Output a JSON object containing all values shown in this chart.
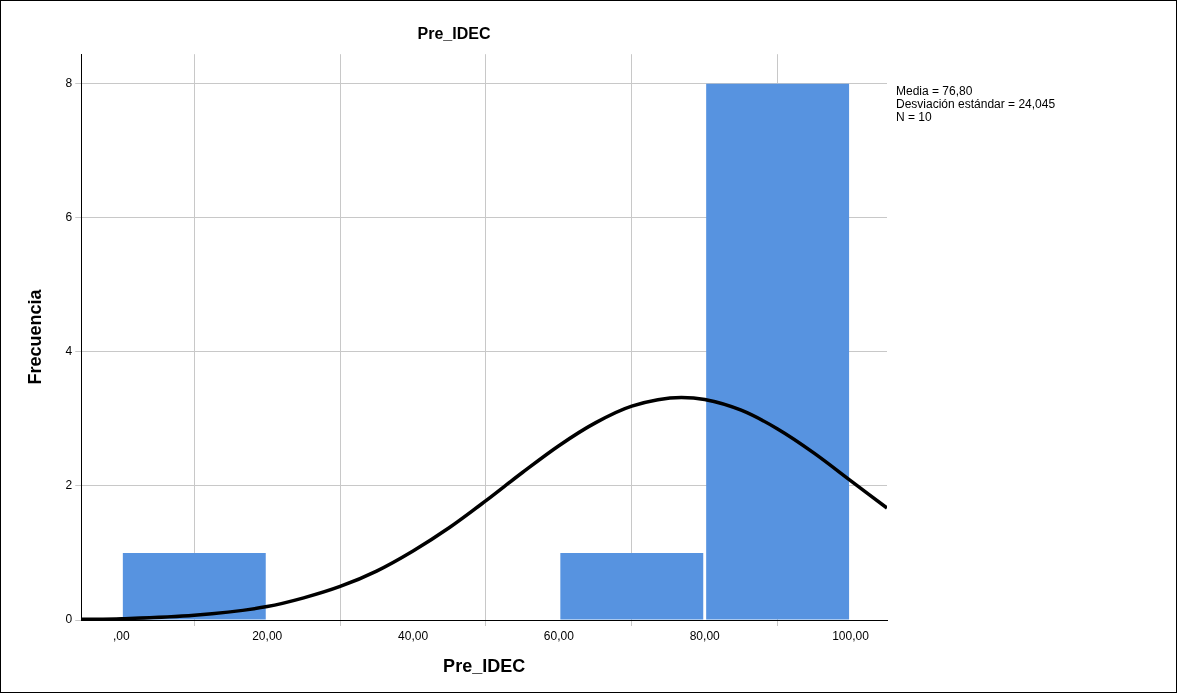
{
  "chart_data": {
    "type": "histogram",
    "title": "Pre_IDEC",
    "xlabel": "Pre_IDEC",
    "ylabel": "Frecuencia",
    "bins": [
      0,
      20,
      40,
      60,
      80,
      100
    ],
    "values": [
      1,
      0,
      0,
      1,
      8
    ],
    "color": "#5793e0",
    "xlim": [
      -5.5,
      105
    ],
    "xticks": [
      {
        "value": 0,
        "label": ",00"
      },
      {
        "value": 20,
        "label": "20,00"
      },
      {
        "value": 40,
        "label": "40,00"
      },
      {
        "value": 60,
        "label": "60,00"
      },
      {
        "value": 80,
        "label": "80,00"
      },
      {
        "value": 100,
        "label": "100,00"
      }
    ],
    "ylim": [
      0,
      8.44
    ],
    "yticks": [
      0,
      2,
      4,
      6,
      8
    ],
    "grid": true,
    "marker": "none",
    "annotations": [
      "Media = 76,80",
      "Desviación estándar = 24,045",
      "N = 10"
    ],
    "series": [
      {
        "type": "line",
        "color": "#000000",
        "x": [
          -5.5,
          0,
          10,
          20,
          25,
          30,
          35,
          40,
          45,
          50,
          55,
          60,
          65,
          70,
          76.8,
          80,
          85,
          90,
          95,
          100,
          105
        ],
        "values": [
          0.01,
          0.02,
          0.07,
          0.2,
          0.33,
          0.5,
          0.73,
          1.03,
          1.38,
          1.78,
          2.2,
          2.6,
          2.94,
          3.19,
          3.32,
          3.29,
          3.13,
          2.85,
          2.49,
          2.08,
          1.67
        ]
      }
    ]
  }
}
